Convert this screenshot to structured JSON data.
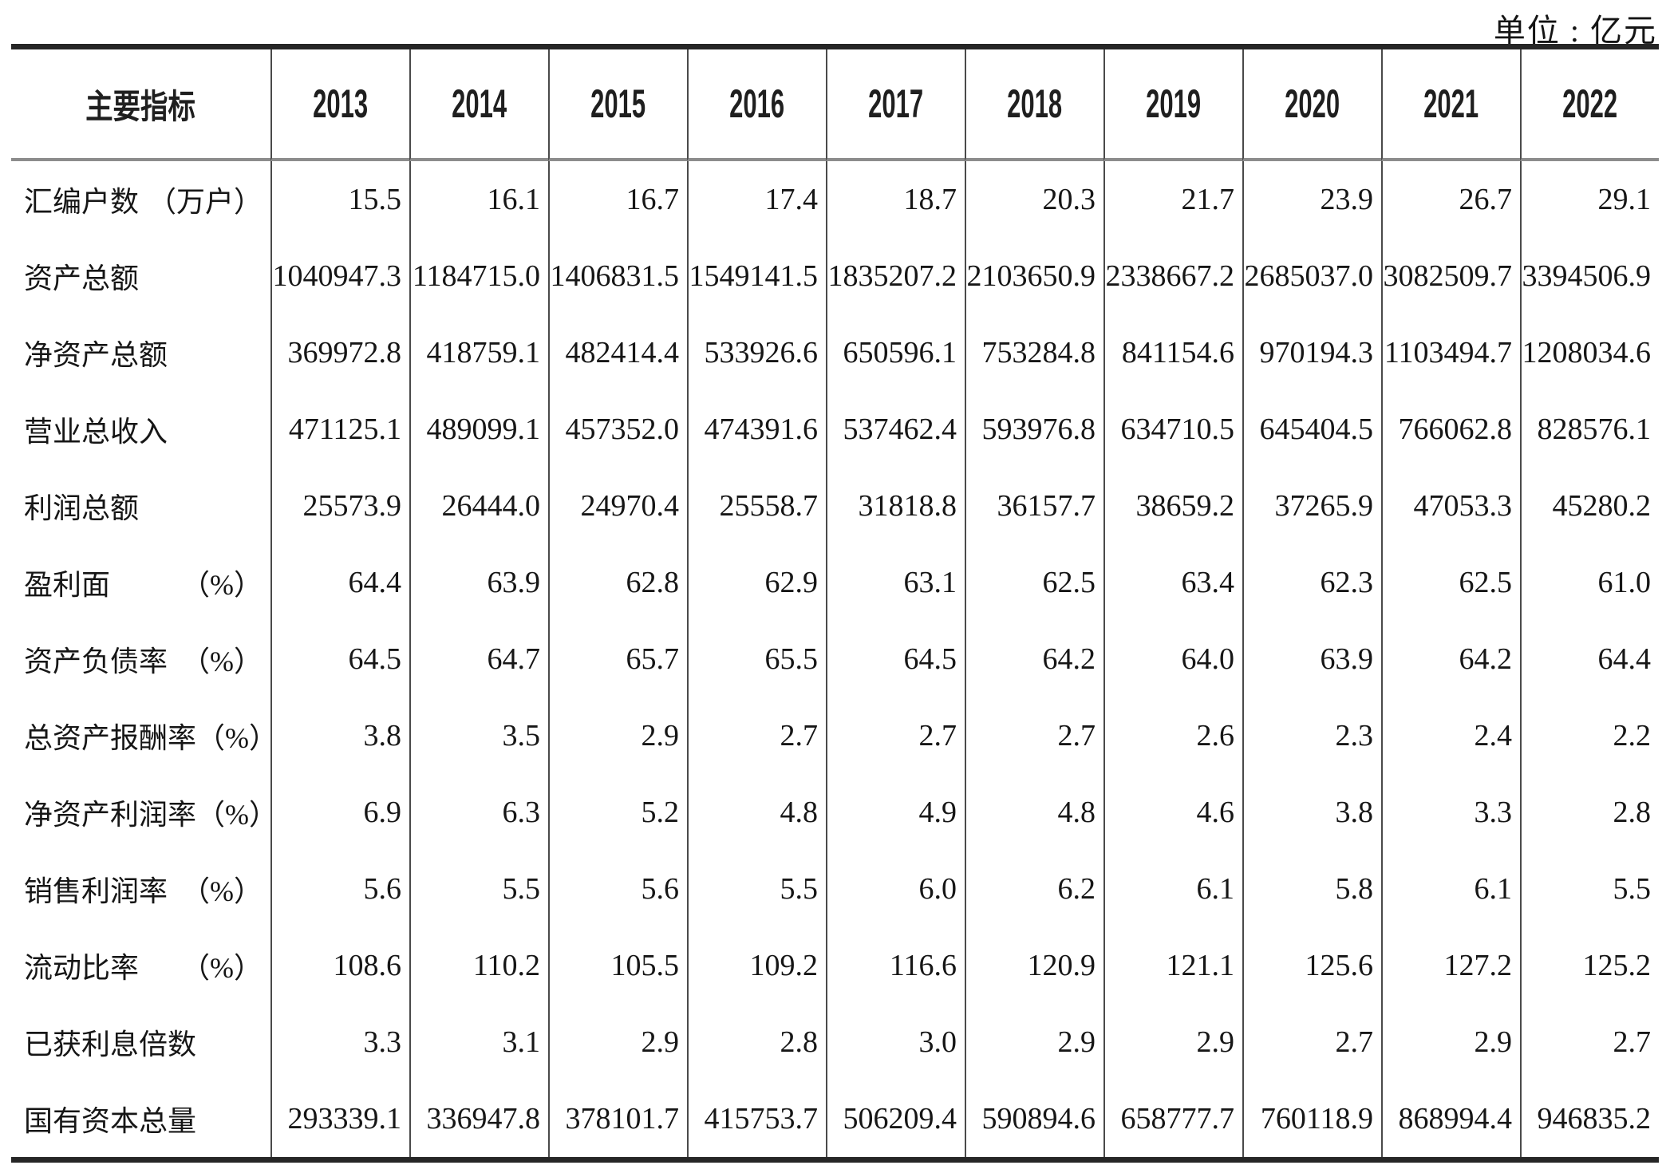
{
  "unit_label": "单位 : 亿元",
  "table": {
    "header": {
      "indicator_label": "主要指标",
      "years": [
        "2013",
        "2014",
        "2015",
        "2016",
        "2017",
        "2018",
        "2019",
        "2020",
        "2021",
        "2022"
      ]
    },
    "rows": [
      {
        "name": "汇编户数",
        "suffix": "（万户）",
        "values": [
          "15.5",
          "16.1",
          "16.7",
          "17.4",
          "18.7",
          "20.3",
          "21.7",
          "23.9",
          "26.7",
          "29.1"
        ]
      },
      {
        "name": "资产总额",
        "suffix": "",
        "values": [
          "1040947.3",
          "1184715.0",
          "1406831.5",
          "1549141.5",
          "1835207.2",
          "2103650.9",
          "2338667.2",
          "2685037.0",
          "3082509.7",
          "3394506.9"
        ]
      },
      {
        "name": "净资产总额",
        "suffix": "",
        "values": [
          "369972.8",
          "418759.1",
          "482414.4",
          "533926.6",
          "650596.1",
          "753284.8",
          "841154.6",
          "970194.3",
          "1103494.7",
          "1208034.6"
        ]
      },
      {
        "name": "营业总收入",
        "suffix": "",
        "values": [
          "471125.1",
          "489099.1",
          "457352.0",
          "474391.6",
          "537462.4",
          "593976.8",
          "634710.5",
          "645404.5",
          "766062.8",
          "828576.1"
        ]
      },
      {
        "name": "利润总额",
        "suffix": "",
        "values": [
          "25573.9",
          "26444.0",
          "24970.4",
          "25558.7",
          "31818.8",
          "36157.7",
          "38659.2",
          "37265.9",
          "47053.3",
          "45280.2"
        ]
      },
      {
        "name": "盈利面",
        "suffix": "（%）",
        "values": [
          "64.4",
          "63.9",
          "62.8",
          "62.9",
          "63.1",
          "62.5",
          "63.4",
          "62.3",
          "62.5",
          "61.0"
        ]
      },
      {
        "name": "资产负债率",
        "suffix": "（%）",
        "values": [
          "64.5",
          "64.7",
          "65.7",
          "65.5",
          "64.5",
          "64.2",
          "64.0",
          "63.9",
          "64.2",
          "64.4"
        ]
      },
      {
        "name": "总资产报酬率",
        "suffix": "（%）",
        "values": [
          "3.8",
          "3.5",
          "2.9",
          "2.7",
          "2.7",
          "2.7",
          "2.6",
          "2.3",
          "2.4",
          "2.2"
        ]
      },
      {
        "name": "净资产利润率",
        "suffix": "（%）",
        "values": [
          "6.9",
          "6.3",
          "5.2",
          "4.8",
          "4.9",
          "4.8",
          "4.6",
          "3.8",
          "3.3",
          "2.8"
        ]
      },
      {
        "name": "销售利润率",
        "suffix": "（%）",
        "values": [
          "5.6",
          "5.5",
          "5.6",
          "5.5",
          "6.0",
          "6.2",
          "6.1",
          "5.8",
          "6.1",
          "5.5"
        ]
      },
      {
        "name": "流动比率",
        "suffix": "（%）",
        "values": [
          "108.6",
          "110.2",
          "105.5",
          "109.2",
          "116.6",
          "120.9",
          "121.1",
          "125.6",
          "127.2",
          "125.2"
        ]
      },
      {
        "name": "已获利息倍数",
        "suffix": "",
        "values": [
          "3.3",
          "3.1",
          "2.9",
          "2.8",
          "3.0",
          "2.9",
          "2.9",
          "2.7",
          "2.9",
          "2.7"
        ]
      },
      {
        "name": "国有资本总量",
        "suffix": "",
        "values": [
          "293339.1",
          "336947.8",
          "378101.7",
          "415753.7",
          "506209.4",
          "590894.6",
          "658777.7",
          "760118.9",
          "868994.4",
          "946835.2"
        ]
      }
    ]
  }
}
